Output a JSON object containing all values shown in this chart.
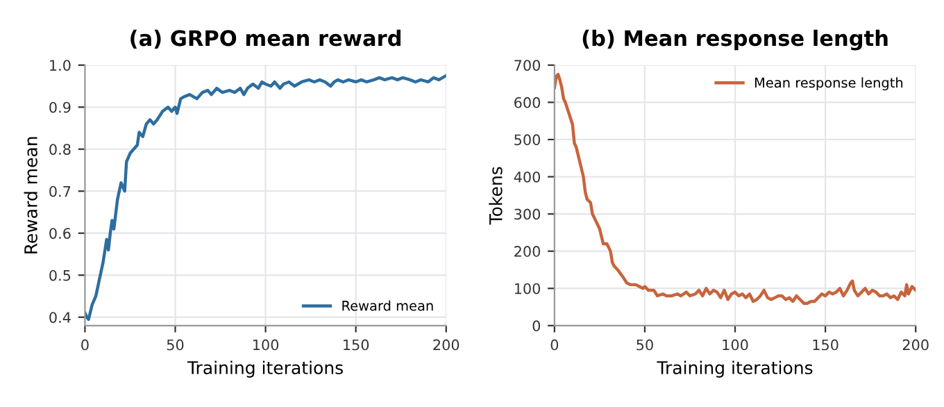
{
  "chart_data": [
    {
      "type": "line",
      "title": "(a) GRPO mean reward",
      "xlabel": "Training iterations",
      "ylabel": "Reward mean",
      "xlim": [
        0,
        200
      ],
      "xticks": [
        0,
        50,
        100,
        150,
        200
      ],
      "ylim": [
        0.38,
        1.0
      ],
      "yticks": [
        0.4,
        0.5,
        0.6,
        0.7,
        0.8,
        0.9,
        {
          "value": 1.0,
          "label": "1.0"
        }
      ],
      "grid": true,
      "legend": "bottom right",
      "series": [
        {
          "name": "Reward mean",
          "color": "#2e6e9e",
          "x": [
            0,
            1,
            2,
            4,
            6,
            8,
            10,
            12,
            13,
            14,
            15,
            16,
            18,
            20,
            21,
            22,
            23,
            25,
            27,
            29,
            30,
            32,
            34,
            36,
            38,
            40,
            43,
            46,
            48,
            50,
            51,
            53,
            55,
            58,
            60,
            62,
            65,
            68,
            70,
            73,
            76,
            80,
            83,
            86,
            88,
            90,
            93,
            96,
            98,
            100,
            103,
            105,
            108,
            110,
            113,
            116,
            120,
            124,
            127,
            130,
            133,
            136,
            138,
            140,
            143,
            146,
            150,
            153,
            156,
            160,
            163,
            166,
            170,
            173,
            176,
            180,
            183,
            186,
            190,
            193,
            196,
            198,
            200
          ],
          "values": [
            0.41,
            0.4,
            0.395,
            0.43,
            0.45,
            0.49,
            0.53,
            0.585,
            0.56,
            0.6,
            0.63,
            0.61,
            0.68,
            0.72,
            0.71,
            0.7,
            0.77,
            0.79,
            0.8,
            0.81,
            0.84,
            0.83,
            0.86,
            0.87,
            0.86,
            0.87,
            0.89,
            0.9,
            0.89,
            0.9,
            0.885,
            0.92,
            0.925,
            0.93,
            0.925,
            0.92,
            0.935,
            0.94,
            0.93,
            0.945,
            0.935,
            0.94,
            0.935,
            0.945,
            0.93,
            0.945,
            0.955,
            0.945,
            0.96,
            0.955,
            0.95,
            0.96,
            0.945,
            0.955,
            0.96,
            0.95,
            0.96,
            0.965,
            0.96,
            0.965,
            0.96,
            0.95,
            0.96,
            0.965,
            0.96,
            0.965,
            0.96,
            0.965,
            0.96,
            0.965,
            0.97,
            0.965,
            0.97,
            0.965,
            0.97,
            0.965,
            0.96,
            0.965,
            0.96,
            0.97,
            0.965,
            0.97,
            0.975
          ]
        }
      ]
    },
    {
      "type": "line",
      "title": "(b) Mean response length",
      "xlabel": "Training iterations",
      "ylabel": "Tokens",
      "xlim": [
        0,
        200
      ],
      "xticks": [
        0,
        50,
        100,
        150,
        200
      ],
      "ylim": [
        0,
        700
      ],
      "yticks": [
        0,
        100,
        200,
        300,
        400,
        500,
        600,
        700
      ],
      "grid": true,
      "legend": "top right",
      "series": [
        {
          "name": "Mean response length",
          "color": "#c8643c",
          "x": [
            0,
            1,
            2,
            3,
            4,
            5,
            6,
            8,
            10,
            11,
            12,
            14,
            16,
            17,
            18,
            20,
            21,
            23,
            25,
            26,
            27,
            29,
            31,
            32,
            33,
            35,
            38,
            40,
            42,
            45,
            47,
            49,
            50,
            52,
            55,
            57,
            60,
            62,
            65,
            68,
            70,
            73,
            75,
            78,
            80,
            82,
            84,
            86,
            88,
            90,
            92,
            94,
            96,
            98,
            100,
            102,
            104,
            106,
            108,
            110,
            112,
            114,
            116,
            118,
            120,
            122,
            124,
            126,
            128,
            130,
            132,
            134,
            136,
            138,
            140,
            142,
            144,
            146,
            148,
            150,
            152,
            154,
            156,
            158,
            160,
            162,
            164,
            165,
            166,
            168,
            170,
            172,
            174,
            176,
            178,
            180,
            182,
            184,
            186,
            188,
            190,
            192,
            194,
            195,
            196,
            198,
            200
          ],
          "values": [
            640,
            670,
            675,
            660,
            640,
            610,
            600,
            570,
            540,
            490,
            480,
            440,
            400,
            360,
            340,
            330,
            300,
            280,
            260,
            240,
            220,
            220,
            200,
            170,
            160,
            150,
            130,
            115,
            110,
            110,
            105,
            100,
            105,
            95,
            95,
            80,
            85,
            80,
            80,
            85,
            80,
            90,
            80,
            85,
            95,
            80,
            100,
            85,
            95,
            90,
            75,
            95,
            70,
            85,
            90,
            80,
            85,
            75,
            85,
            65,
            70,
            80,
            95,
            75,
            70,
            75,
            80,
            80,
            70,
            75,
            65,
            80,
            70,
            60,
            60,
            65,
            65,
            75,
            85,
            80,
            90,
            85,
            90,
            100,
            80,
            95,
            115,
            120,
            95,
            80,
            90,
            100,
            85,
            95,
            90,
            80,
            80,
            85,
            75,
            80,
            70,
            90,
            80,
            110,
            85,
            105,
            95
          ]
        }
      ]
    }
  ]
}
